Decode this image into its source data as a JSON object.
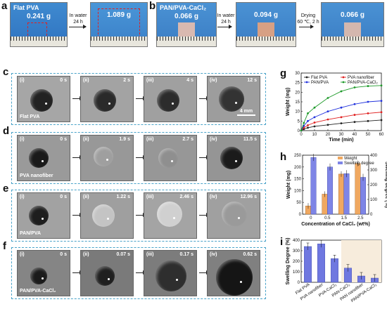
{
  "panel_a": {
    "letter": "a",
    "label": "Flat PVA",
    "mass_before": "0.241 g",
    "arrow_text": "In water\n24 h",
    "mass_after": "1.089 g"
  },
  "panel_b": {
    "letter": "b",
    "label": "PAN/PVA-CaCl₂",
    "mass_1": "0.066 g",
    "arrow_1": "In water\n24 h",
    "mass_2": "0.094 g",
    "arrow_2": "Drying\n60 ℃, 2 h",
    "mass_3": "0.066 g"
  },
  "drop_rows": [
    {
      "letter": "c",
      "label": "Flat PVA",
      "times": [
        "0 s",
        "2 s",
        "4 s",
        "12 s"
      ],
      "scale": "4 mm"
    },
    {
      "letter": "d",
      "label": "PVA nanofiber",
      "times": [
        "0 s",
        "1.9 s",
        "2.7 s",
        "11.5 s"
      ]
    },
    {
      "letter": "e",
      "label": "PAN/PVA",
      "times": [
        "0 s",
        "1.22 s",
        "2.46 s",
        "12.96 s"
      ]
    },
    {
      "letter": "f",
      "label": "PAN/PVA-CaCl₂",
      "times": [
        "0 s",
        "0.07 s",
        "0.17 s",
        "0.62 s"
      ]
    }
  ],
  "romans": [
    "(i)",
    "(ii)",
    "(iii)",
    "(iv)"
  ],
  "chart_data": [
    {
      "panel": "g",
      "type": "line",
      "xlabel": "Time (min)",
      "ylabel": "Weight (mg)",
      "xlim": [
        0,
        60
      ],
      "ylim": [
        0,
        30
      ],
      "xticks": [
        0,
        10,
        20,
        30,
        40,
        50,
        60
      ],
      "yticks": [
        0,
        5,
        10,
        15,
        20,
        25,
        30
      ],
      "x": [
        0,
        2,
        5,
        10,
        20,
        30,
        40,
        50,
        60
      ],
      "series": [
        {
          "name": "Flat PVA",
          "color": "#222222",
          "values": [
            0,
            0.8,
            1.5,
            2.2,
            3.0,
            3.8,
            4.5,
            5.0,
            5.5
          ]
        },
        {
          "name": "PVA nanofiber",
          "color": "#e02020",
          "values": [
            0,
            1.5,
            2.8,
            4.2,
            5.8,
            7.0,
            8.2,
            9.0,
            9.6
          ]
        },
        {
          "name": "PAN/PVA",
          "color": "#2233dd",
          "values": [
            0,
            2.5,
            5.0,
            7.0,
            10.0,
            12.0,
            13.8,
            15.0,
            15.5
          ]
        },
        {
          "name": "PAN/PVA-CaCl₂",
          "color": "#1e9a2a",
          "values": [
            0,
            4.0,
            9.0,
            12.0,
            17.0,
            20.5,
            22.5,
            23.2,
            23.5
          ]
        }
      ],
      "legend_position": "top-left"
    },
    {
      "panel": "h",
      "type": "bar",
      "xlabel": "Concentration of CaCl₂ (wt%)",
      "ylabel_left": "Weight (mg)",
      "ylabel_right": "Swelling degree (%)",
      "categories": [
        "0",
        "0.5",
        "1.5",
        "2.5"
      ],
      "ylim_left": [
        0,
        250
      ],
      "yticks_left": [
        0,
        50,
        100,
        150,
        200,
        250
      ],
      "ylim_right": [
        0,
        400
      ],
      "yticks_right": [
        0,
        100,
        200,
        300,
        400
      ],
      "series": [
        {
          "name": "Weight",
          "color": "#f0a860",
          "values": [
            35,
            85,
            170,
            215
          ]
        },
        {
          "name": "Swelling degree",
          "color": "#7e85e6",
          "values": [
            385,
            320,
            275,
            250
          ]
        }
      ],
      "legend_position": "top-right"
    },
    {
      "panel": "i",
      "type": "bar",
      "ylabel": "Swelling Degree (%)",
      "ylim": [
        0,
        400
      ],
      "yticks": [
        0,
        100,
        200,
        300,
        400
      ],
      "categories": [
        "Flat PVA",
        "PVA nanofiber",
        "PVA-CaCl₂",
        "PAN-CaCl₂",
        "PAN nanofiber",
        "PAN/PVA-CaCl₂"
      ],
      "values": [
        340,
        365,
        225,
        135,
        60,
        40
      ],
      "color": "#6f78e0"
    }
  ]
}
